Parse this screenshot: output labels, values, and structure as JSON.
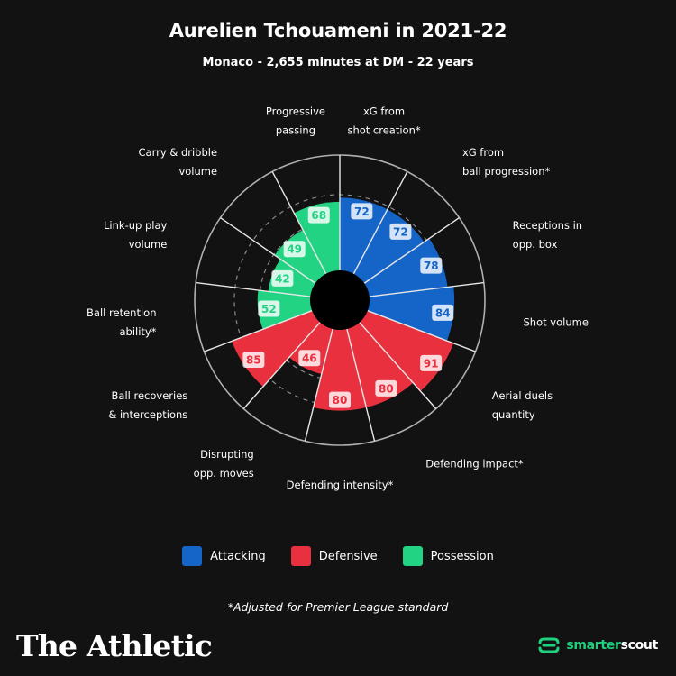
{
  "header": {
    "title": "Aurelien Tchouameni in 2021-22",
    "subtitle": "Monaco - 2,655 minutes at DM - 22 years"
  },
  "colors": {
    "attacking": "#1565c8",
    "defensive": "#e8303e",
    "possession": "#22d383",
    "background": "#121212",
    "grid": "#9a9a9a"
  },
  "chart_data": {
    "type": "polar-bar",
    "rlim": [
      0,
      100
    ],
    "grid": true,
    "legend_position": "bottom",
    "categories": [
      {
        "label": [
          "xG from",
          "shot creation*"
        ],
        "value": 72,
        "group": "Attacking"
      },
      {
        "label": [
          "xG from",
          "ball progression*"
        ],
        "value": 72,
        "group": "Attacking"
      },
      {
        "label": [
          "Receptions in",
          "opp. box"
        ],
        "value": 78,
        "group": "Attacking"
      },
      {
        "label": [
          "Shot volume"
        ],
        "value": 84,
        "group": "Attacking"
      },
      {
        "label": [
          "Aerial duels",
          "quantity"
        ],
        "value": 91,
        "group": "Defensive"
      },
      {
        "label": [
          "Defending impact*"
        ],
        "value": 80,
        "group": "Defensive"
      },
      {
        "label": [
          "Defending intensity*"
        ],
        "value": 80,
        "group": "Defensive"
      },
      {
        "label": [
          "Disrupting",
          "opp. moves"
        ],
        "value": 46,
        "group": "Defensive"
      },
      {
        "label": [
          "Ball recoveries",
          "& interceptions"
        ],
        "value": 85,
        "group": "Defensive"
      },
      {
        "label": [
          "Ball retention",
          "ability*"
        ],
        "value": 52,
        "group": "Possession"
      },
      {
        "label": [
          "Link-up play",
          "volume"
        ],
        "value": 42,
        "group": "Possession"
      },
      {
        "label": [
          "Carry & dribble",
          "volume"
        ],
        "value": 49,
        "group": "Possession"
      },
      {
        "label": [
          "Progressive",
          "passing"
        ],
        "value": 68,
        "group": "Possession"
      }
    ]
  },
  "legend": [
    {
      "label": "Attacking",
      "color": "#1565c8"
    },
    {
      "label": "Defensive",
      "color": "#e8303e"
    },
    {
      "label": "Possession",
      "color": "#22d383"
    }
  ],
  "footnote": "*Adjusted for Premier League standard",
  "brand": "The Athletic",
  "scout": {
    "prefix": "smarter",
    "suffix": "scout",
    "icon": "smarterscout-logo-icon"
  }
}
